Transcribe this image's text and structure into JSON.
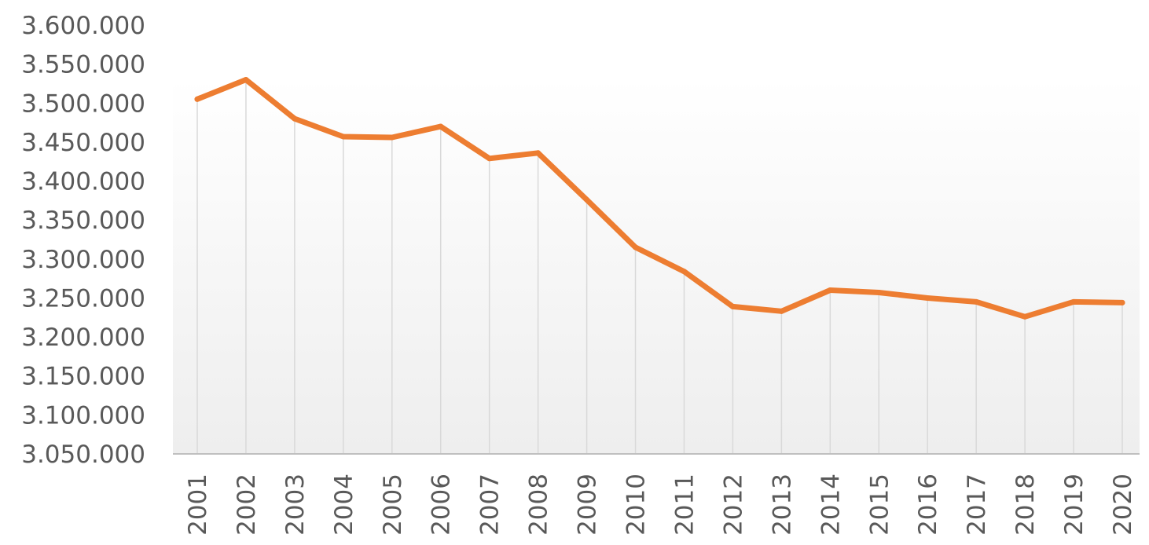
{
  "chart_data": {
    "type": "line",
    "title": "",
    "xlabel": "",
    "ylabel": "",
    "x": [
      "2001",
      "2002",
      "2003",
      "2004",
      "2005",
      "2006",
      "2007",
      "2008",
      "2009",
      "2010",
      "2011",
      "2012",
      "2013",
      "2014",
      "2015",
      "2016",
      "2017",
      "2018",
      "2019",
      "2020"
    ],
    "series": [
      {
        "values": [
          3505000,
          3530000,
          3480000,
          3457000,
          3456000,
          3470000,
          3429000,
          3436000,
          3376000,
          3315000,
          3284000,
          3239000,
          3233000,
          3260000,
          3257000,
          3250000,
          3245000,
          3226000,
          3245000,
          3244000
        ],
        "color": "#ed7d31"
      }
    ],
    "ylim": [
      3050000,
      3600000
    ],
    "yticks": [
      "3.600.000",
      "3.550.000",
      "3.500.000",
      "3.450.000",
      "3.400.000",
      "3.350.000",
      "3.300.000",
      "3.250.000",
      "3.200.000",
      "3.150.000",
      "3.100.000",
      "3.050.000"
    ],
    "grid": "vertical drop lines",
    "legend": "none",
    "colors": {
      "line": "#ed7d31",
      "gridline": "#d9d9d9",
      "axis": "#bfbfbf",
      "text": "#595959"
    }
  }
}
